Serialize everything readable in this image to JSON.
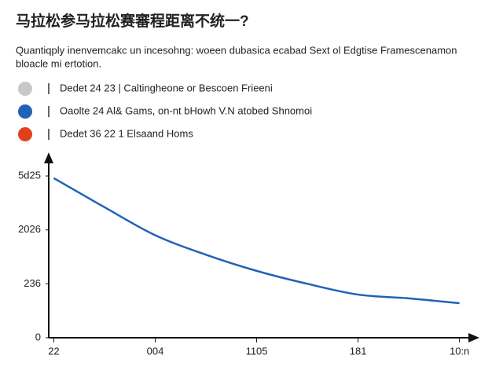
{
  "chart_data": {
    "type": "line",
    "title": "马拉松参马拉松赛審程距离不统一?",
    "subtitle": [
      "Quantiqply inenvemcakc un incesohng: woeen dubasica ecabad Sext ol Edgtise Framescenamon",
      "bloacle mi ertotion."
    ],
    "legend_items": [
      {
        "label": "Dedet 24 23 | Caltingheone or Bescoen Frieeni",
        "color": "#c8c8c8"
      },
      {
        "label": "Oaolte 24 Al& Gams, on-nt bHowh V.N atobed Shnomoi",
        "color": "#1f63b8"
      },
      {
        "label": "Dedet 36 22 1 Elsaand Homs",
        "color": "#e0401c"
      }
    ],
    "x": [
      0,
      0.5,
      1,
      1.5,
      2,
      2.5,
      3,
      3.5,
      4
    ],
    "values": [
      2.96,
      2.42,
      1.9,
      1.54,
      1.24,
      1.0,
      0.8,
      0.73,
      0.64
    ],
    "color": "#1f63b8",
    "xlim": [
      -0.05,
      4.15
    ],
    "xticks": [
      {
        "value": 0,
        "label": "22"
      },
      {
        "value": 1,
        "label": "004"
      },
      {
        "value": 2,
        "label": "1105"
      },
      {
        "value": 3,
        "label": "181"
      },
      {
        "value": 4,
        "label": "10:n"
      }
    ],
    "ylim": [
      0,
      3.35
    ],
    "yticks": [
      0,
      {
        "value": 1,
        "label": "236"
      },
      {
        "value": 2,
        "label": "2026"
      },
      {
        "value": 3,
        "label": "5d25"
      }
    ]
  }
}
